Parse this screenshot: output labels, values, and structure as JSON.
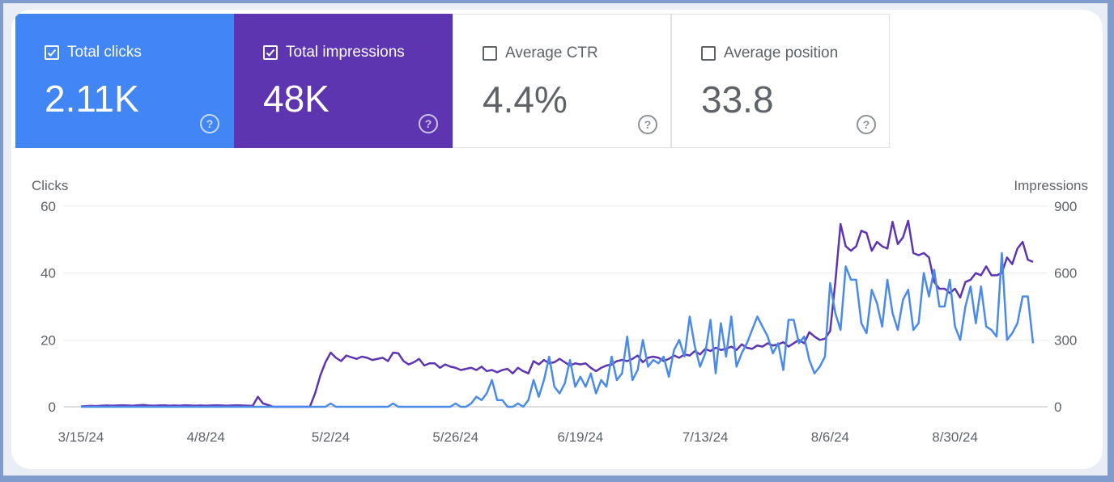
{
  "metrics": [
    {
      "label": "Total clicks",
      "value": "2.11K",
      "selected": true,
      "color": "#4285f4"
    },
    {
      "label": "Total impressions",
      "value": "48K",
      "selected": true,
      "color": "#5e35b1"
    },
    {
      "label": "Average CTR",
      "value": "4.4%",
      "selected": false
    },
    {
      "label": "Average position",
      "value": "33.8",
      "selected": false
    }
  ],
  "chart_data": {
    "type": "line",
    "y_label": "Clicks",
    "y2_label": "Impressions",
    "categories": [
      "3/15/24",
      null,
      null,
      null,
      null,
      null,
      null,
      null,
      null,
      null,
      null,
      null,
      null,
      null,
      null,
      null,
      null,
      null,
      null,
      null,
      null,
      null,
      null,
      null,
      "4/8/24",
      null,
      null,
      null,
      null,
      null,
      null,
      null,
      null,
      null,
      null,
      null,
      null,
      null,
      null,
      null,
      null,
      null,
      null,
      null,
      null,
      null,
      null,
      null,
      "5/2/24",
      null,
      null,
      null,
      null,
      null,
      null,
      null,
      null,
      null,
      null,
      null,
      null,
      null,
      null,
      null,
      null,
      null,
      null,
      null,
      null,
      null,
      null,
      null,
      "5/26/24",
      null,
      null,
      null,
      null,
      null,
      null,
      null,
      null,
      null,
      null,
      null,
      null,
      null,
      null,
      null,
      null,
      null,
      null,
      null,
      null,
      null,
      null,
      null,
      "6/19/24",
      null,
      null,
      null,
      null,
      null,
      null,
      null,
      null,
      null,
      null,
      null,
      null,
      null,
      null,
      null,
      null,
      null,
      null,
      null,
      null,
      null,
      null,
      null,
      "7/13/24",
      null,
      null,
      null,
      null,
      null,
      null,
      null,
      null,
      null,
      null,
      null,
      null,
      null,
      null,
      null,
      null,
      null,
      null,
      null,
      null,
      null,
      null,
      null,
      "8/6/24",
      null,
      null,
      null,
      null,
      null,
      null,
      null,
      null,
      null,
      null,
      null,
      null,
      null,
      null,
      null,
      null,
      null,
      null,
      null,
      null,
      null,
      null,
      null,
      "8/30/24",
      null,
      null,
      null,
      null,
      null,
      null,
      null,
      null,
      null,
      null,
      null,
      null,
      null,
      null,
      null
    ],
    "ylim": [
      0,
      60
    ],
    "yticks": [
      0,
      20,
      40,
      60
    ],
    "y2lim": [
      0,
      900
    ],
    "y2ticks": [
      0,
      300,
      600,
      900
    ],
    "grid": true,
    "series": [
      {
        "name": "Total impressions",
        "color": "#5e35b1",
        "axis": "y2",
        "values": [
          2,
          3,
          4,
          3,
          5,
          6,
          5,
          6,
          7,
          6,
          5,
          7,
          8,
          6,
          5,
          6,
          7,
          5,
          6,
          5,
          7,
          6,
          5,
          6,
          5,
          6,
          7,
          6,
          5,
          6,
          7,
          6,
          5,
          4,
          45,
          15,
          8,
          0,
          0,
          0,
          0,
          0,
          0,
          0,
          0,
          60,
          140,
          200,
          243,
          220,
          205,
          230,
          222,
          215,
          225,
          220,
          210,
          215,
          220,
          205,
          243,
          240,
          205,
          190,
          200,
          215,
          185,
          195,
          195,
          175,
          190,
          180,
          175,
          165,
          170,
          175,
          165,
          180,
          160,
          165,
          155,
          165,
          170,
          150,
          175,
          160,
          150,
          205,
          190,
          210,
          195,
          200,
          215,
          200,
          185,
          195,
          190,
          195,
          175,
          160,
          175,
          185,
          190,
          205,
          210,
          205,
          215,
          230,
          200,
          220,
          225,
          220,
          205,
          215,
          230,
          220,
          235,
          230,
          250,
          235,
          260,
          250,
          265,
          255,
          260,
          270,
          255,
          280,
          265,
          260,
          275,
          270,
          285,
          275,
          280,
          290,
          270,
          285,
          300,
          285,
          335,
          315,
          300,
          305,
          340,
          560,
          820,
          720,
          700,
          720,
          790,
          780,
          700,
          740,
          720,
          710,
          830,
          730,
          760,
          835,
          690,
          680,
          690,
          670,
          560,
          530,
          530,
          510,
          530,
          490,
          560,
          570,
          600,
          590,
          630,
          590,
          590,
          600,
          670,
          640,
          710,
          740,
          660,
          650
        ]
      },
      {
        "name": "Total clicks",
        "color": "#4a8ae8",
        "values": [
          0,
          0,
          0,
          0,
          0,
          0,
          0,
          0,
          0,
          0,
          0,
          0,
          0,
          0,
          0,
          0,
          0,
          0,
          0,
          0,
          0,
          0,
          0,
          0,
          0,
          0,
          0,
          0,
          0,
          0,
          0,
          0,
          0,
          0,
          0,
          0,
          0,
          0,
          0,
          0,
          0,
          0,
          0,
          0,
          0,
          0,
          0,
          0,
          1,
          0,
          0,
          0,
          0,
          0,
          0,
          0,
          0,
          0,
          0,
          0,
          1,
          0,
          0,
          0,
          0,
          0,
          0,
          0,
          0,
          0,
          0,
          0,
          1,
          0,
          0,
          1,
          3,
          2,
          4,
          8,
          2,
          2,
          0,
          0,
          1,
          0,
          2,
          8,
          3,
          8,
          15,
          6,
          4,
          7,
          14,
          6,
          9,
          6,
          10,
          4,
          8,
          6,
          15,
          8,
          10,
          21,
          8,
          11,
          20,
          12,
          14,
          13,
          15,
          9,
          17,
          20,
          15,
          27,
          18,
          12,
          16,
          26,
          10,
          25,
          15,
          27,
          12,
          16,
          19,
          23,
          27,
          24,
          21,
          16,
          19,
          11,
          26,
          26,
          19,
          21,
          14,
          10,
          12,
          15,
          37,
          28,
          23,
          42,
          38,
          38,
          25,
          22,
          35,
          31,
          24,
          38,
          28,
          23,
          32,
          35,
          23,
          25,
          40,
          33,
          41,
          30,
          30,
          38,
          24,
          20,
          30,
          36,
          25,
          36,
          24,
          23,
          21,
          46,
          20,
          22,
          25,
          33,
          33,
          19
        ]
      }
    ]
  }
}
